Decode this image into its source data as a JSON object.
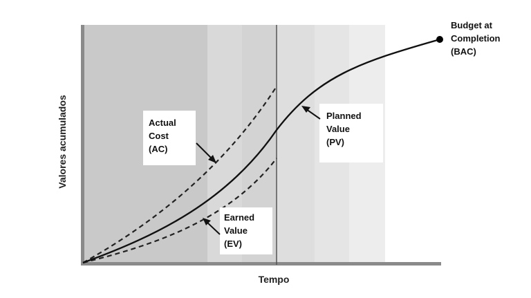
{
  "axes": {
    "x_label": "Tempo",
    "y_label": "Valores acumulados"
  },
  "labels": {
    "bac": [
      "Budget at",
      "Completion",
      "(BAC)"
    ],
    "ac": [
      "Actual",
      "Cost",
      "(AC)"
    ],
    "pv": [
      "Planned",
      "Value",
      "(PV)"
    ],
    "ev": [
      "Earned",
      "Value",
      "(EV)"
    ]
  },
  "colors": {
    "plot_dark": "#c8c8c8",
    "plot_mid": "#dcdcdc",
    "plot_light": "#e6e6e6",
    "plot_lightest": "#eeeeee",
    "curve": "#111111",
    "axis": "#7a7a7a"
  }
}
